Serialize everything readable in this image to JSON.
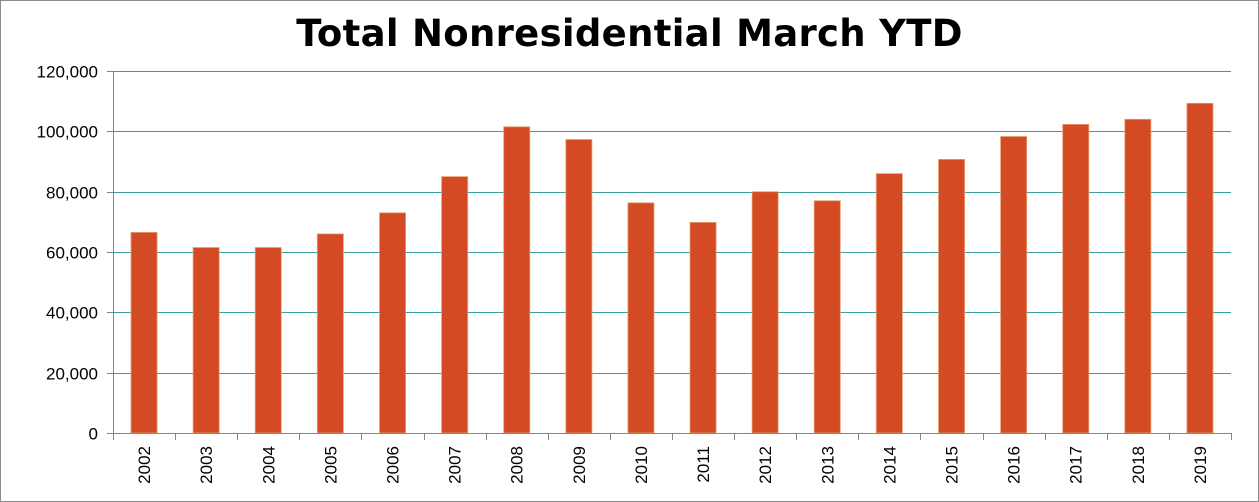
{
  "chart_data": {
    "type": "bar",
    "title": "Total Nonresidential March YTD",
    "xlabel": "",
    "ylabel": "",
    "categories": [
      "2002",
      "2003",
      "2004",
      "2005",
      "2006",
      "2007",
      "2008",
      "2009",
      "2010",
      "2011",
      "2012",
      "2013",
      "2014",
      "2015",
      "2016",
      "2017",
      "2018",
      "2019"
    ],
    "values": [
      66500,
      61500,
      61500,
      66000,
      73000,
      85000,
      101500,
      97300,
      76300,
      69800,
      80000,
      77000,
      86000,
      90700,
      98300,
      102300,
      104000,
      109300
    ],
    "ylim": [
      0,
      120000
    ],
    "yticks": [
      0,
      20000,
      40000,
      60000,
      80000,
      100000,
      120000
    ],
    "ytick_labels": [
      "0",
      "20,000",
      "40,000",
      "60,000",
      "80,000",
      "100,000",
      "120,000"
    ],
    "grid": true,
    "legend": "none",
    "colors": {
      "bar_fill": "#d34a24",
      "bar_edge": "#e8a070",
      "grid": "#3d9e9e",
      "axis": "#868686"
    }
  }
}
